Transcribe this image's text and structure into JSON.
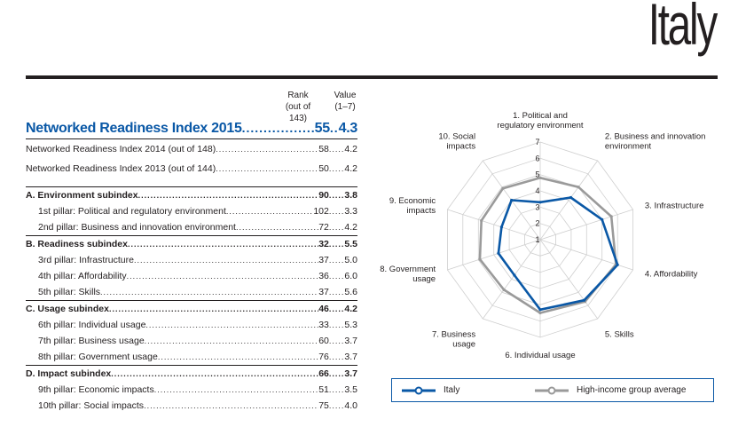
{
  "country": "Italy",
  "table": {
    "header": {
      "rank": [
        "Rank",
        "(out of 143)"
      ],
      "value": [
        "Value",
        "(1–7)"
      ]
    },
    "main": {
      "label": "Networked Readiness Index 2015",
      "rank": "55",
      "value": "4.3"
    },
    "history": [
      {
        "label": "Networked Readiness Index 2014 (out of 148)",
        "rank": "58",
        "value": "4.2"
      },
      {
        "label": "Networked Readiness Index 2013 (out of 144)",
        "rank": "50",
        "value": "4.2"
      }
    ],
    "groups": [
      {
        "label": "A. Environment subindex",
        "rank": "90",
        "value": "3.8",
        "pillars": [
          {
            "label": "1st pillar: Political and regulatory environment",
            "rank": "102",
            "value": "3.3"
          },
          {
            "label": "2nd pillar: Business and innovation environment",
            "rank": "72",
            "value": "4.2"
          }
        ]
      },
      {
        "label": "B. Readiness subindex",
        "rank": "32",
        "value": "5.5",
        "pillars": [
          {
            "label": "3rd pillar: Infrastructure",
            "rank": "37",
            "value": "5.0"
          },
          {
            "label": "4th pillar: Affordability",
            "rank": "36",
            "value": "6.0"
          },
          {
            "label": "5th pillar: Skills",
            "rank": "37",
            "value": "5.6"
          }
        ]
      },
      {
        "label": "C. Usage subindex",
        "rank": "46",
        "value": "4.2",
        "pillars": [
          {
            "label": "6th pillar: Individual usage",
            "rank": "33",
            "value": "5.3"
          },
          {
            "label": "7th pillar: Business usage",
            "rank": "60",
            "value": "3.7"
          },
          {
            "label": "8th pillar: Government usage",
            "rank": "76",
            "value": "3.7"
          }
        ]
      },
      {
        "label": "D. Impact subindex",
        "rank": "66",
        "value": "3.7",
        "pillars": [
          {
            "label": "9th pillar: Economic impacts",
            "rank": "51",
            "value": "3.5"
          },
          {
            "label": "10th pillar: Social impacts",
            "rank": "75",
            "value": "4.0"
          }
        ]
      }
    ]
  },
  "chart_data": {
    "type": "radar",
    "axes": [
      [
        "1. Political and",
        "regulatory environment"
      ],
      [
        "2. Business and innovation",
        "environment"
      ],
      [
        "3. Infrastructure"
      ],
      [
        "4. Affordability"
      ],
      [
        "5. Skills"
      ],
      [
        "6. Individual usage"
      ],
      [
        "7. Business",
        "usage"
      ],
      [
        "8. Government",
        "usage"
      ],
      [
        "9. Economic",
        "impacts"
      ],
      [
        "10. Social",
        "impacts"
      ]
    ],
    "scale": {
      "min": 1,
      "max": 7,
      "ticks": [
        "1",
        "2",
        "3",
        "4",
        "5",
        "6",
        "7"
      ]
    },
    "series": [
      {
        "name": "Italy",
        "color": "#0a58a6",
        "values": [
          3.3,
          4.2,
          5.0,
          6.0,
          5.6,
          5.3,
          3.7,
          3.7,
          3.5,
          4.0
        ]
      },
      {
        "name": "High-income group average",
        "color": "#9a9a9a",
        "values": [
          4.8,
          5.0,
          5.6,
          5.9,
          5.7,
          5.5,
          4.8,
          4.9,
          4.8,
          4.9
        ]
      }
    ],
    "grid": true,
    "legend": "bottom"
  }
}
